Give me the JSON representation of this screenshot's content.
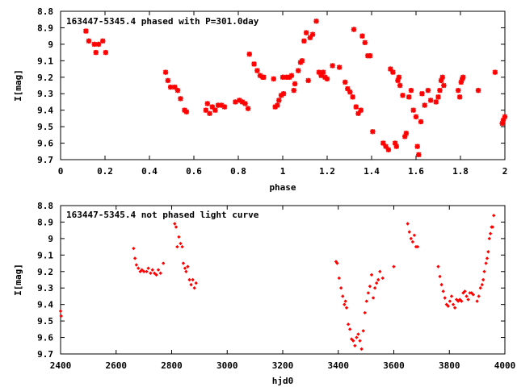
{
  "chart_data": [
    {
      "type": "scatter",
      "title": "163447-5345.4 phased with P=301.0day",
      "xlabel": "phase",
      "ylabel": "I[mag]",
      "xlim": [
        0,
        2
      ],
      "ylim": [
        9.7,
        8.8
      ],
      "y_inverted": true,
      "x_ticks": [
        "0",
        "0.2",
        "0.4",
        "0.6",
        "0.8",
        "1",
        "1.2",
        "1.4",
        "1.6",
        "1.8",
        "2"
      ],
      "y_ticks": [
        "8.8",
        "8.9",
        "9",
        "9.1",
        "9.2",
        "9.3",
        "9.4",
        "9.5",
        "9.6",
        "9.7"
      ],
      "marker_color": "#ff0000",
      "marker": "star",
      "grid": false,
      "points": [
        [
          0.114,
          8.92
        ],
        [
          0.127,
          8.98
        ],
        [
          0.152,
          9.0
        ],
        [
          0.159,
          9.05
        ],
        [
          0.171,
          9.0
        ],
        [
          0.19,
          8.98
        ],
        [
          0.203,
          9.05
        ],
        [
          0.473,
          9.17
        ],
        [
          0.483,
          9.22
        ],
        [
          0.495,
          9.26
        ],
        [
          0.514,
          9.26
        ],
        [
          0.527,
          9.28
        ],
        [
          0.54,
          9.33
        ],
        [
          0.558,
          9.4
        ],
        [
          0.567,
          9.41
        ],
        [
          0.654,
          9.4
        ],
        [
          0.661,
          9.36
        ],
        [
          0.671,
          9.42
        ],
        [
          0.683,
          9.38
        ],
        [
          0.696,
          9.4
        ],
        [
          0.709,
          9.37
        ],
        [
          0.724,
          9.37
        ],
        [
          0.738,
          9.38
        ],
        [
          0.787,
          9.35
        ],
        [
          0.805,
          9.34
        ],
        [
          0.818,
          9.35
        ],
        [
          0.831,
          9.36
        ],
        [
          0.844,
          9.39
        ],
        [
          0.85,
          9.06
        ],
        [
          0.871,
          9.12
        ],
        [
          0.885,
          9.16
        ],
        [
          0.898,
          9.19
        ],
        [
          0.91,
          9.2
        ],
        [
          0.914,
          9.2
        ],
        [
          0.959,
          9.21
        ],
        [
          0.966,
          9.38
        ],
        [
          0.976,
          9.37
        ],
        [
          0.983,
          9.34
        ],
        [
          0.993,
          9.31
        ],
        [
          1.0,
          9.2
        ],
        [
          1.004,
          9.3
        ],
        [
          1.017,
          9.2
        ],
        [
          1.03,
          9.2
        ],
        [
          1.04,
          9.19
        ],
        [
          1.05,
          9.28
        ],
        [
          1.055,
          9.24
        ],
        [
          1.07,
          9.16
        ],
        [
          1.08,
          9.11
        ],
        [
          1.087,
          9.1
        ],
        [
          1.096,
          8.98
        ],
        [
          1.106,
          8.93
        ],
        [
          1.115,
          9.22
        ],
        [
          1.123,
          8.96
        ],
        [
          1.135,
          8.94
        ],
        [
          1.151,
          8.86
        ],
        [
          1.163,
          9.17
        ],
        [
          1.173,
          9.19
        ],
        [
          1.182,
          9.17
        ],
        [
          1.19,
          9.2
        ],
        [
          1.2,
          9.21
        ],
        [
          1.224,
          9.13
        ],
        [
          1.255,
          9.14
        ],
        [
          1.281,
          9.23
        ],
        [
          1.292,
          9.27
        ],
        [
          1.303,
          9.29
        ],
        [
          1.315,
          9.32
        ],
        [
          1.32,
          8.91
        ],
        [
          1.33,
          9.38
        ],
        [
          1.34,
          9.42
        ],
        [
          1.352,
          9.4
        ],
        [
          1.358,
          8.95
        ],
        [
          1.37,
          8.99
        ],
        [
          1.383,
          9.07
        ],
        [
          1.393,
          9.07
        ],
        [
          1.405,
          9.53
        ],
        [
          1.452,
          9.6
        ],
        [
          1.464,
          9.62
        ],
        [
          1.476,
          9.64
        ],
        [
          1.485,
          9.15
        ],
        [
          1.496,
          9.17
        ],
        [
          1.506,
          9.6
        ],
        [
          1.512,
          9.62
        ],
        [
          1.518,
          9.22
        ],
        [
          1.523,
          9.2
        ],
        [
          1.528,
          9.25
        ],
        [
          1.54,
          9.31
        ],
        [
          1.55,
          9.56
        ],
        [
          1.556,
          9.54
        ],
        [
          1.568,
          9.32
        ],
        [
          1.578,
          9.28
        ],
        [
          1.588,
          9.4
        ],
        [
          1.6,
          9.44
        ],
        [
          1.606,
          9.62
        ],
        [
          1.612,
          9.67
        ],
        [
          1.622,
          9.47
        ],
        [
          1.627,
          9.3
        ],
        [
          1.639,
          9.37
        ],
        [
          1.654,
          9.28
        ],
        [
          1.666,
          9.34
        ],
        [
          1.69,
          9.35
        ],
        [
          1.7,
          9.32
        ],
        [
          1.707,
          9.28
        ],
        [
          1.713,
          9.22
        ],
        [
          1.719,
          9.2
        ],
        [
          1.725,
          9.25
        ],
        [
          1.79,
          9.28
        ],
        [
          1.797,
          9.32
        ],
        [
          1.803,
          9.23
        ],
        [
          1.808,
          9.21
        ],
        [
          1.812,
          9.2
        ],
        [
          1.88,
          9.28
        ],
        [
          1.956,
          9.17
        ],
        [
          1.988,
          9.48
        ],
        [
          1.993,
          9.46
        ],
        [
          2.0,
          9.44
        ]
      ]
    },
    {
      "type": "scatter",
      "title": "163447-5345.4 not phased light curve",
      "xlabel": "hjd0",
      "ylabel": "I[mag]",
      "xlim": [
        2400,
        4000
      ],
      "ylim": [
        9.7,
        8.8
      ],
      "y_inverted": true,
      "x_ticks": [
        "2400",
        "2600",
        "2800",
        "3000",
        "3200",
        "3400",
        "3600",
        "3800",
        "4000"
      ],
      "y_ticks": [
        "8.8",
        "8.9",
        "9",
        "9.1",
        "9.2",
        "9.3",
        "9.4",
        "9.5",
        "9.6",
        "9.7"
      ],
      "marker_color": "#ff0000",
      "marker": "diamond",
      "grid": false,
      "points": [
        [
          2400,
          9.44
        ],
        [
          2402,
          9.47
        ],
        [
          2663,
          9.06
        ],
        [
          2668,
          9.12
        ],
        [
          2673,
          9.16
        ],
        [
          2680,
          9.18
        ],
        [
          2687,
          9.2
        ],
        [
          2693,
          9.19
        ],
        [
          2700,
          9.2
        ],
        [
          2710,
          9.2
        ],
        [
          2716,
          9.18
        ],
        [
          2724,
          9.21
        ],
        [
          2731,
          9.19
        ],
        [
          2738,
          9.21
        ],
        [
          2745,
          9.22
        ],
        [
          2752,
          9.19
        ],
        [
          2760,
          9.21
        ],
        [
          2770,
          9.15
        ],
        [
          2811,
          8.91
        ],
        [
          2816,
          8.93
        ],
        [
          2820,
          9.05
        ],
        [
          2826,
          8.99
        ],
        [
          2832,
          9.03
        ],
        [
          2838,
          9.05
        ],
        [
          2842,
          9.15
        ],
        [
          2848,
          9.18
        ],
        [
          2852,
          9.2
        ],
        [
          2858,
          9.17
        ],
        [
          2864,
          9.25
        ],
        [
          2870,
          9.28
        ],
        [
          2876,
          9.25
        ],
        [
          2882,
          9.3
        ],
        [
          2888,
          9.27
        ],
        [
          3392,
          9.14
        ],
        [
          3396,
          9.15
        ],
        [
          3403,
          9.24
        ],
        [
          3410,
          9.3
        ],
        [
          3416,
          9.35
        ],
        [
          3422,
          9.4
        ],
        [
          3426,
          9.38
        ],
        [
          3430,
          9.42
        ],
        [
          3436,
          9.52
        ],
        [
          3442,
          9.55
        ],
        [
          3448,
          9.61
        ],
        [
          3454,
          9.62
        ],
        [
          3460,
          9.65
        ],
        [
          3466,
          9.6
        ],
        [
          3472,
          9.58
        ],
        [
          3478,
          9.62
        ],
        [
          3484,
          9.67
        ],
        [
          3490,
          9.56
        ],
        [
          3496,
          9.45
        ],
        [
          3502,
          9.38
        ],
        [
          3508,
          9.33
        ],
        [
          3514,
          9.29
        ],
        [
          3520,
          9.22
        ],
        [
          3526,
          9.36
        ],
        [
          3532,
          9.3
        ],
        [
          3538,
          9.27
        ],
        [
          3544,
          9.25
        ],
        [
          3550,
          9.2
        ],
        [
          3560,
          9.24
        ],
        [
          3600,
          9.17
        ],
        [
          3650,
          8.91
        ],
        [
          3656,
          8.96
        ],
        [
          3662,
          9.0
        ],
        [
          3668,
          9.02
        ],
        [
          3674,
          8.98
        ],
        [
          3680,
          9.05
        ],
        [
          3686,
          9.05
        ],
        [
          3760,
          9.17
        ],
        [
          3766,
          9.23
        ],
        [
          3772,
          9.28
        ],
        [
          3778,
          9.32
        ],
        [
          3784,
          9.36
        ],
        [
          3790,
          9.4
        ],
        [
          3796,
          9.41
        ],
        [
          3802,
          9.38
        ],
        [
          3808,
          9.35
        ],
        [
          3814,
          9.4
        ],
        [
          3820,
          9.42
        ],
        [
          3826,
          9.37
        ],
        [
          3832,
          9.38
        ],
        [
          3838,
          9.37
        ],
        [
          3844,
          9.38
        ],
        [
          3850,
          9.33
        ],
        [
          3856,
          9.32
        ],
        [
          3862,
          9.35
        ],
        [
          3868,
          9.37
        ],
        [
          3874,
          9.33
        ],
        [
          3880,
          9.33
        ],
        [
          3886,
          9.34
        ],
        [
          3900,
          9.38
        ],
        [
          3906,
          9.35
        ],
        [
          3912,
          9.3
        ],
        [
          3918,
          9.28
        ],
        [
          3922,
          9.25
        ],
        [
          3926,
          9.2
        ],
        [
          3932,
          9.15
        ],
        [
          3936,
          9.12
        ],
        [
          3940,
          9.08
        ],
        [
          3944,
          9.0
        ],
        [
          3948,
          8.97
        ],
        [
          3952,
          8.93
        ],
        [
          3956,
          8.93
        ],
        [
          3960,
          8.86
        ]
      ]
    }
  ]
}
